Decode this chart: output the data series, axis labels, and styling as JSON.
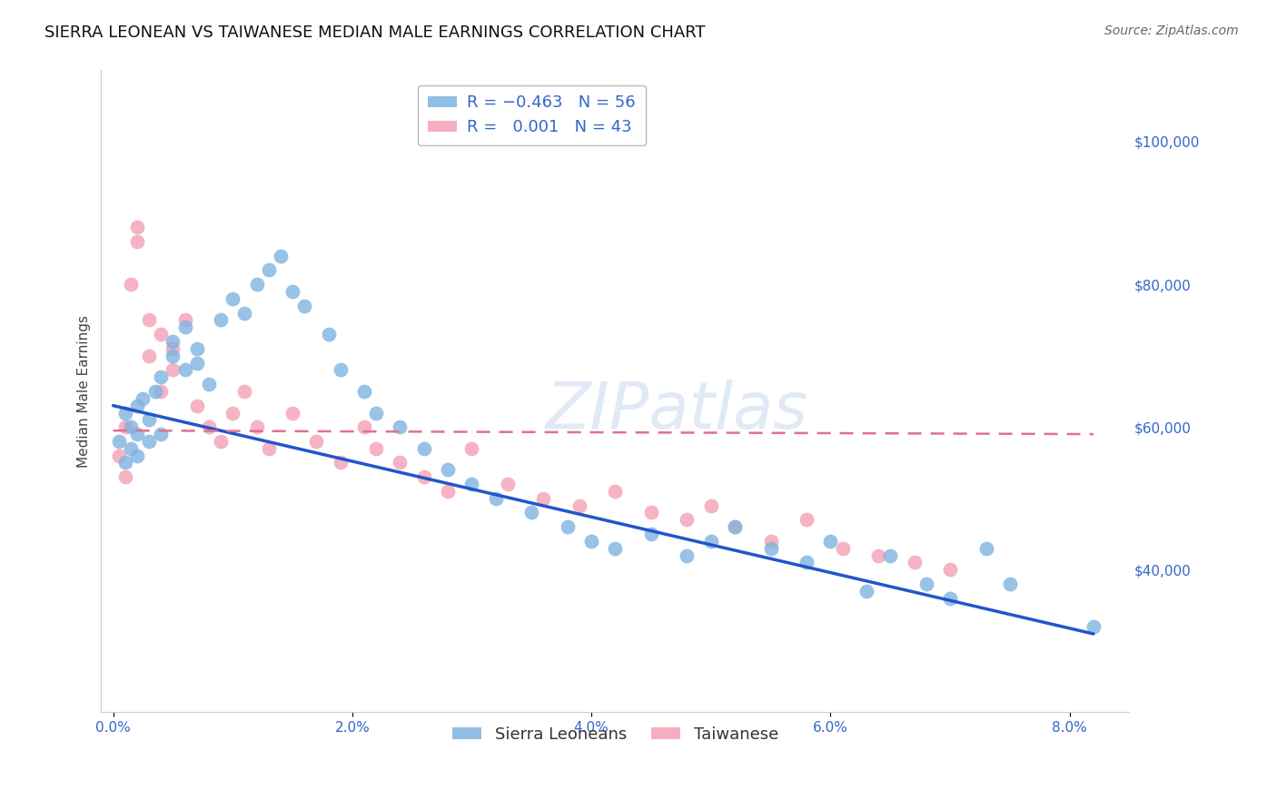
{
  "title": "SIERRA LEONEAN VS TAIWANESE MEDIAN MALE EARNINGS CORRELATION CHART",
  "source": "Source: ZipAtlas.com",
  "ylabel": "Median Male Earnings",
  "ylim": [
    20000,
    110000
  ],
  "xlim": [
    -0.001,
    0.085
  ],
  "watermark": "ZIPatlas",
  "sierra_color": "#7eb3e0",
  "taiwan_color": "#f4a0b5",
  "blue_line_color": "#2255cc",
  "pink_line_color": "#e07090",
  "grid_color": "#cccccc",
  "background_color": "#ffffff",
  "title_fontsize": 13,
  "label_fontsize": 11,
  "tick_color": "#3366cc",
  "blue_line_x0": 0.0,
  "blue_line_y0": 63000,
  "blue_line_x1": 0.082,
  "blue_line_y1": 31000,
  "pink_line_x0": 0.0,
  "pink_line_y0": 59500,
  "pink_line_x1": 0.082,
  "pink_line_y1": 59000,
  "sierra_x": [
    0.0005,
    0.001,
    0.001,
    0.0015,
    0.0015,
    0.002,
    0.002,
    0.002,
    0.0025,
    0.003,
    0.003,
    0.0035,
    0.004,
    0.004,
    0.005,
    0.005,
    0.006,
    0.006,
    0.007,
    0.007,
    0.008,
    0.009,
    0.01,
    0.011,
    0.012,
    0.013,
    0.014,
    0.015,
    0.016,
    0.018,
    0.019,
    0.021,
    0.022,
    0.024,
    0.026,
    0.028,
    0.03,
    0.032,
    0.035,
    0.038,
    0.04,
    0.042,
    0.045,
    0.048,
    0.05,
    0.052,
    0.055,
    0.058,
    0.06,
    0.063,
    0.065,
    0.068,
    0.07,
    0.073,
    0.075,
    0.082
  ],
  "sierra_y": [
    58000,
    55000,
    62000,
    57000,
    60000,
    59000,
    63000,
    56000,
    64000,
    58000,
    61000,
    65000,
    59000,
    67000,
    70000,
    72000,
    68000,
    74000,
    71000,
    69000,
    66000,
    75000,
    78000,
    76000,
    80000,
    82000,
    84000,
    79000,
    77000,
    73000,
    68000,
    65000,
    62000,
    60000,
    57000,
    54000,
    52000,
    50000,
    48000,
    46000,
    44000,
    43000,
    45000,
    42000,
    44000,
    46000,
    43000,
    41000,
    44000,
    37000,
    42000,
    38000,
    36000,
    43000,
    38000,
    32000
  ],
  "taiwan_x": [
    0.0005,
    0.001,
    0.001,
    0.0015,
    0.002,
    0.002,
    0.003,
    0.003,
    0.004,
    0.004,
    0.005,
    0.005,
    0.006,
    0.007,
    0.008,
    0.009,
    0.01,
    0.011,
    0.012,
    0.013,
    0.015,
    0.017,
    0.019,
    0.021,
    0.022,
    0.024,
    0.026,
    0.028,
    0.03,
    0.033,
    0.036,
    0.039,
    0.042,
    0.045,
    0.048,
    0.05,
    0.052,
    0.055,
    0.058,
    0.061,
    0.064,
    0.067,
    0.07
  ],
  "taiwan_y": [
    56000,
    60000,
    53000,
    80000,
    86000,
    88000,
    75000,
    70000,
    65000,
    73000,
    68000,
    71000,
    75000,
    63000,
    60000,
    58000,
    62000,
    65000,
    60000,
    57000,
    62000,
    58000,
    55000,
    60000,
    57000,
    55000,
    53000,
    51000,
    57000,
    52000,
    50000,
    49000,
    51000,
    48000,
    47000,
    49000,
    46000,
    44000,
    47000,
    43000,
    42000,
    41000,
    40000
  ]
}
